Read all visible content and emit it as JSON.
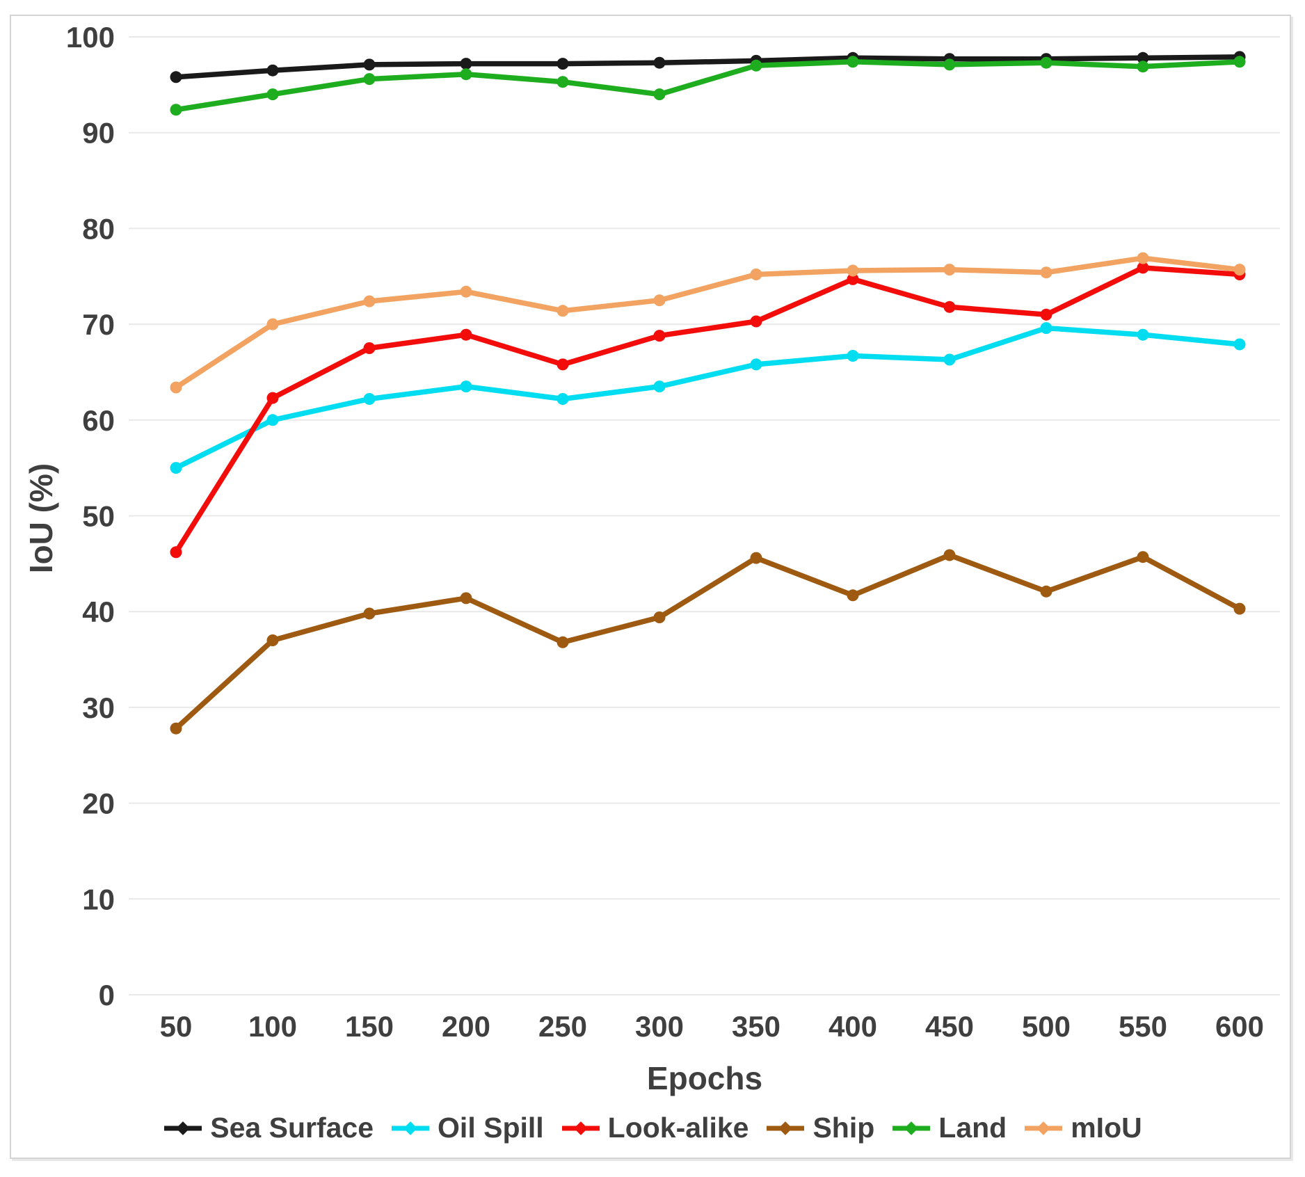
{
  "chart_data": {
    "type": "line",
    "title": "",
    "xlabel": "Epochs",
    "ylabel": "IoU (%)",
    "x": [
      50,
      100,
      150,
      200,
      250,
      300,
      350,
      400,
      450,
      500,
      550,
      600
    ],
    "xlim": [
      50,
      600
    ],
    "ylim": [
      0,
      100
    ],
    "ytick_step": 10,
    "yticks": [
      0,
      10,
      20,
      30,
      40,
      50,
      60,
      70,
      80,
      90,
      100
    ],
    "grid": "horizontal",
    "legend_position": "bottom",
    "marker": "point",
    "series": [
      {
        "name": "Sea Surface",
        "color": "#1a1a1a",
        "values": [
          95.8,
          96.5,
          97.1,
          97.2,
          97.2,
          97.3,
          97.5,
          97.8,
          97.7,
          97.7,
          97.8,
          97.9
        ]
      },
      {
        "name": "Oil Spill",
        "color": "#00ddf0",
        "values": [
          55.0,
          60.0,
          62.2,
          63.5,
          62.2,
          63.5,
          65.8,
          66.7,
          66.3,
          69.6,
          68.9,
          67.9
        ]
      },
      {
        "name": "Look-alike",
        "color": "#f30d0a",
        "values": [
          46.2,
          62.3,
          67.5,
          68.9,
          65.8,
          68.8,
          70.3,
          74.7,
          71.8,
          71.0,
          75.9,
          75.2
        ]
      },
      {
        "name": "Ship",
        "color": "#9d5a10",
        "values": [
          27.8,
          37.0,
          39.8,
          41.4,
          36.8,
          39.4,
          45.6,
          41.7,
          45.9,
          42.1,
          45.7,
          40.3
        ]
      },
      {
        "name": "Land",
        "color": "#1ead1e",
        "values": [
          92.4,
          94.0,
          95.6,
          96.1,
          95.3,
          94.0,
          97.0,
          97.4,
          97.1,
          97.3,
          96.9,
          97.4
        ]
      },
      {
        "name": "mIoU",
        "color": "#f2a361",
        "values": [
          63.4,
          70.0,
          72.4,
          73.4,
          71.4,
          72.5,
          75.2,
          75.6,
          75.7,
          75.4,
          76.9,
          75.7
        ]
      }
    ]
  },
  "colors": {
    "background": "#ffffff",
    "gridline": "#e9e9e9",
    "tick_label": "#3f3f3f",
    "frame_border": "#d4d4d4"
  }
}
